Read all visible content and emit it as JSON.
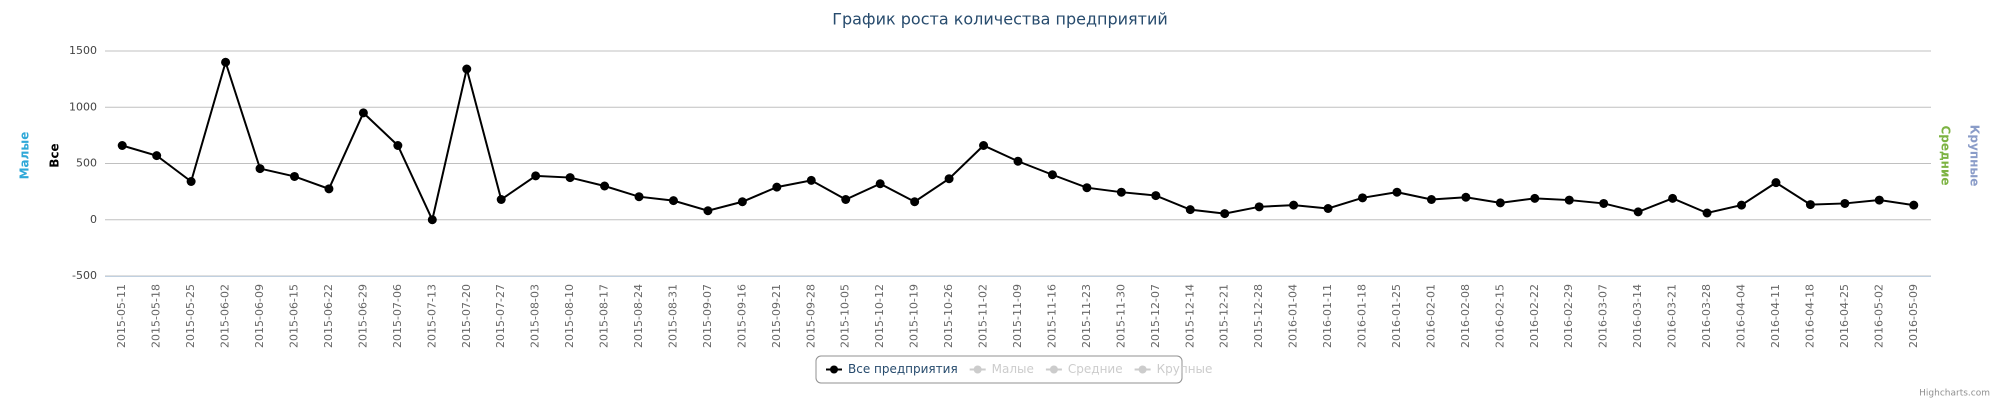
{
  "chart_data": {
    "type": "line",
    "title": "График роста количества предприятий",
    "categories": [
      "2015-05-11",
      "2015-05-18",
      "2015-05-25",
      "2015-06-02",
      "2015-06-09",
      "2015-06-15",
      "2015-06-22",
      "2015-06-29",
      "2015-07-06",
      "2015-07-13",
      "2015-07-20",
      "2015-07-27",
      "2015-08-03",
      "2015-08-10",
      "2015-08-17",
      "2015-08-24",
      "2015-08-31",
      "2015-09-07",
      "2015-09-16",
      "2015-09-21",
      "2015-09-28",
      "2015-10-05",
      "2015-10-12",
      "2015-10-19",
      "2015-10-26",
      "2015-11-02",
      "2015-11-09",
      "2015-11-16",
      "2015-11-23",
      "2015-11-30",
      "2015-12-07",
      "2015-12-14",
      "2015-12-21",
      "2015-12-28",
      "2016-01-04",
      "2016-01-11",
      "2016-01-18",
      "2016-01-25",
      "2016-02-01",
      "2016-02-08",
      "2016-02-15",
      "2016-02-22",
      "2016-02-29",
      "2016-03-07",
      "2016-03-14",
      "2016-03-21",
      "2016-03-28",
      "2016-04-04",
      "2016-04-11",
      "2016-04-18",
      "2016-04-25",
      "2016-05-02",
      "2016-05-09"
    ],
    "series": [
      {
        "name": "Все предприятия",
        "color": "#000000",
        "values": [
          660,
          570,
          340,
          1400,
          455,
          385,
          275,
          950,
          660,
          0,
          1340,
          180,
          390,
          375,
          300,
          205,
          170,
          80,
          160,
          290,
          350,
          180,
          320,
          160,
          365,
          660,
          520,
          400,
          285,
          245,
          215,
          90,
          55,
          115,
          130,
          100,
          195,
          245,
          180,
          200,
          150,
          190,
          175,
          145,
          70,
          190,
          60,
          130,
          330,
          135,
          145,
          175,
          130
        ]
      }
    ],
    "legend_items": [
      {
        "name": "Все предприятия",
        "color": "#000000",
        "visible": true
      },
      {
        "name": "Малые",
        "color": "#cccccc",
        "visible": false
      },
      {
        "name": "Средние",
        "color": "#cccccc",
        "visible": false
      },
      {
        "name": "Крупные",
        "color": "#cccccc",
        "visible": false
      }
    ],
    "y_axis_titles_left": [
      {
        "text": "Малые",
        "color": "#2fa8d8"
      },
      {
        "text": "Все",
        "color": "#000000"
      }
    ],
    "y_axis_titles_right": [
      {
        "text": "Средние",
        "color": "#7cb342"
      },
      {
        "text": "Крупные",
        "color": "#8a9cc8"
      }
    ],
    "ylim": [
      -500,
      1500
    ],
    "yticks": [
      -500,
      0,
      500,
      1000,
      1500
    ],
    "grid": true,
    "credits": "Highcharts.com"
  }
}
